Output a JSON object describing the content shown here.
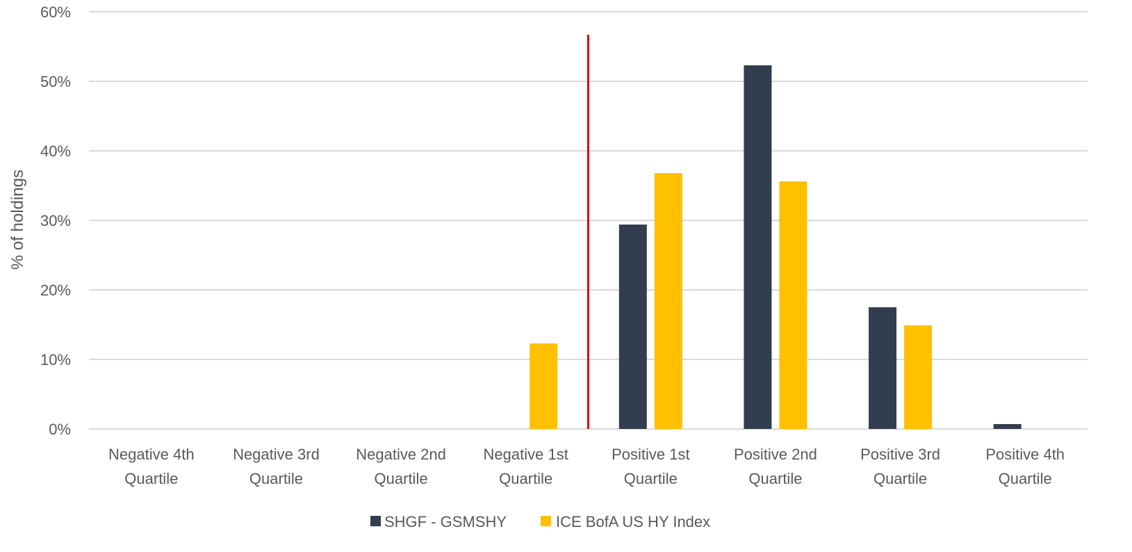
{
  "chart_data": {
    "type": "bar",
    "title": "",
    "xlabel": "",
    "ylabel": "% of holdings",
    "ylim": [
      0,
      0.6
    ],
    "y_ticks": [
      0,
      0.1,
      0.2,
      0.3,
      0.4,
      0.5,
      0.6
    ],
    "y_tick_labels": [
      "0%",
      "10%",
      "20%",
      "30%",
      "40%",
      "50%",
      "60%"
    ],
    "categories": [
      [
        "Negative 4th",
        "Quartile"
      ],
      [
        "Negative 3rd",
        "Quartile"
      ],
      [
        "Negative 2nd",
        "Quartile"
      ],
      [
        "Negative 1st",
        "Quartile"
      ],
      [
        "Positive 1st",
        "Quartile"
      ],
      [
        "Positive 2nd",
        "Quartile"
      ],
      [
        "Positive 3rd",
        "Quartile"
      ],
      [
        "Positive 4th",
        "Quartile"
      ]
    ],
    "series": [
      {
        "name": "SHGF - GSMSHY",
        "color": "#323d4f",
        "values": [
          0,
          0,
          0,
          0,
          0.294,
          0.523,
          0.175,
          0.007
        ]
      },
      {
        "name": "ICE BofA US HY Index",
        "color": "#ffc000",
        "values": [
          0,
          0,
          0,
          0.123,
          0.368,
          0.356,
          0.149,
          0
        ]
      }
    ],
    "divider": {
      "between_categories": [
        3,
        4
      ],
      "color": "#e00000"
    },
    "grid": true,
    "legend_position": "bottom-center",
    "gridline_color": "#d9d9d9"
  }
}
